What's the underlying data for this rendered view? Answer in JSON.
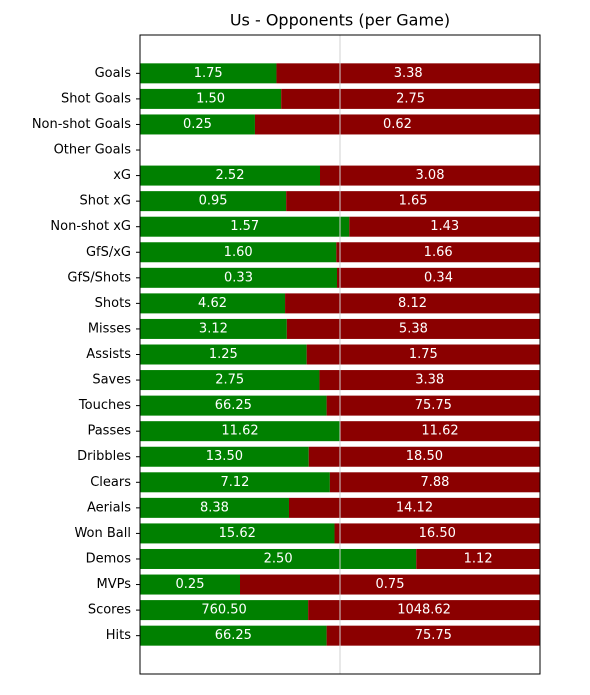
{
  "chart_data": {
    "type": "comparison_bar",
    "title": "Us - Opponents (per Game)",
    "categories": [
      "Goals",
      "Shot Goals",
      "Non-shot Goals",
      "Other Goals",
      "xG",
      "Shot xG",
      "Non-shot xG",
      "GfS/xG",
      "GfS/Shots",
      "Shots",
      "Misses",
      "Assists",
      "Saves",
      "Touches",
      "Passes",
      "Dribbles",
      "Clears",
      "Aerials",
      "Won Ball",
      "Demos",
      "MVPs",
      "Scores",
      "Hits"
    ],
    "series": [
      {
        "color": "#008000",
        "values": [
          1.75,
          1.5,
          0.25,
          null,
          2.52,
          0.95,
          1.57,
          1.6,
          0.33,
          4.62,
          3.12,
          1.25,
          2.75,
          66.25,
          11.62,
          13.5,
          7.12,
          8.38,
          15.62,
          2.5,
          0.25,
          760.5,
          66.25
        ],
        "value_labels": [
          "1.75",
          "1.50",
          "0.25",
          null,
          "2.52",
          "0.95",
          "1.57",
          "1.60",
          "0.33",
          "4.62",
          "3.12",
          "1.25",
          "2.75",
          "66.25",
          "11.62",
          "13.50",
          "7.12",
          "8.38",
          "15.62",
          "2.50",
          "0.25",
          "760.50",
          "66.25"
        ]
      },
      {
        "color": "#8b0000",
        "values": [
          3.38,
          2.75,
          0.62,
          null,
          3.08,
          1.65,
          1.43,
          1.66,
          0.34,
          8.12,
          5.38,
          1.75,
          3.38,
          75.75,
          11.62,
          18.5,
          7.88,
          14.12,
          16.5,
          1.12,
          0.75,
          1048.62,
          75.75
        ],
        "value_labels": [
          "3.38",
          "2.75",
          "0.62",
          null,
          "3.08",
          "1.65",
          "1.43",
          "1.66",
          "0.34",
          "8.12",
          "5.38",
          "1.75",
          "3.38",
          "75.75",
          "11.62",
          "18.50",
          "7.88",
          "14.12",
          "16.50",
          "1.12",
          "0.75",
          "1048.62",
          "75.75"
        ]
      }
    ]
  }
}
